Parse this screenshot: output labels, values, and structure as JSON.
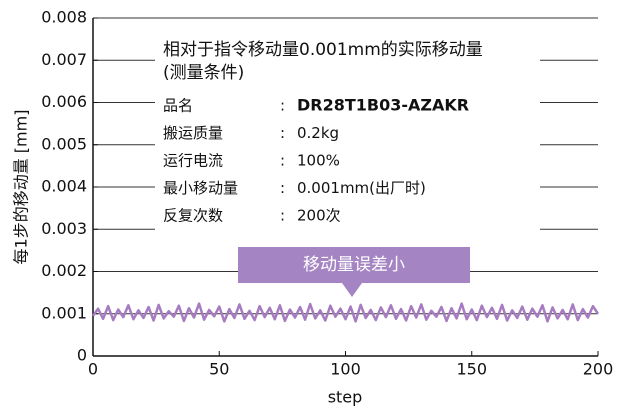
{
  "chart_data": {
    "type": "line",
    "y_label": "每1步的移动量 [mm]",
    "x_label": "step",
    "xlim": [
      0,
      200
    ],
    "xticks": [
      0,
      50,
      100,
      150,
      200
    ],
    "ylim": [
      0,
      0.008
    ],
    "yticks": [
      0,
      0.001,
      0.002,
      0.003,
      0.004,
      0.005,
      0.006,
      0.007,
      0.008
    ],
    "grid": true,
    "color": "#a77bc0",
    "x": [
      0,
      2,
      4,
      6,
      8,
      10,
      12,
      14,
      16,
      18,
      20,
      22,
      24,
      26,
      28,
      30,
      32,
      34,
      36,
      38,
      40,
      42,
      44,
      46,
      48,
      50,
      52,
      54,
      56,
      58,
      60,
      62,
      64,
      66,
      68,
      70,
      72,
      74,
      76,
      78,
      80,
      82,
      84,
      86,
      88,
      90,
      92,
      94,
      96,
      98,
      100,
      102,
      104,
      106,
      108,
      110,
      112,
      114,
      116,
      118,
      120,
      122,
      124,
      126,
      128,
      130,
      132,
      134,
      136,
      138,
      140,
      142,
      144,
      146,
      148,
      150,
      152,
      154,
      156,
      158,
      160,
      162,
      164,
      166,
      168,
      170,
      172,
      174,
      176,
      178,
      180,
      182,
      184,
      186,
      188,
      190,
      192,
      194,
      196,
      198,
      200
    ],
    "values": [
      0.00095,
      0.00112,
      0.00088,
      0.00118,
      0.00085,
      0.0011,
      0.00092,
      0.0012,
      0.00087,
      0.00108,
      0.0009,
      0.00116,
      0.00084,
      0.00121,
      0.00089,
      0.00106,
      0.00093,
      0.00119,
      0.00083,
      0.00113,
      0.00091,
      0.00124,
      0.00086,
      0.00109,
      0.00094,
      0.00117,
      0.00082,
      0.00111,
      0.0009,
      0.00122,
      0.00088,
      0.00107,
      0.00085,
      0.00118,
      0.00092,
      0.00114,
      0.00087,
      0.0012,
      0.00083,
      0.0011,
      0.00091,
      0.00116,
      0.00086,
      0.00123,
      0.00089,
      0.00108,
      0.00084,
      0.00119,
      0.00093,
      0.00112,
      0.00087,
      0.00117,
      0.00082,
      0.00121,
      0.0009,
      0.00109,
      0.00085,
      0.00115,
      0.00092,
      0.0012,
      0.00088,
      0.00111,
      0.00084,
      0.00118,
      0.00091,
      0.00122,
      0.00086,
      0.00107,
      0.00093,
      0.00116,
      0.00083,
      0.00113,
      0.00089,
      0.00124,
      0.00087,
      0.0011,
      0.00085,
      0.00119,
      0.00092,
      0.00114,
      0.00088,
      0.00121,
      0.00084,
      0.00108,
      0.0009,
      0.00117,
      0.00086,
      0.00112,
      0.00093,
      0.0012,
      0.00082,
      0.00115,
      0.00089,
      0.00109,
      0.00087,
      0.00122,
      0.00085,
      0.00111,
      0.00091,
      0.00118,
      0.001
    ],
    "annotations": {
      "title": "相对于指令移动量0.001mm的实际移动量",
      "subtitle": "(测量条件)",
      "separator": ":",
      "conditions": [
        {
          "label": "品名",
          "value": "DR28T1B03-AZAKR"
        },
        {
          "label": "搬运质量",
          "value": "0.2kg"
        },
        {
          "label": "运行电流",
          "value": "100%"
        },
        {
          "label": "最小移动量",
          "value": "0.001mm(出厂时)"
        },
        {
          "label": "反复次数",
          "value": "200次"
        }
      ],
      "callout": "移动量误差小"
    }
  }
}
